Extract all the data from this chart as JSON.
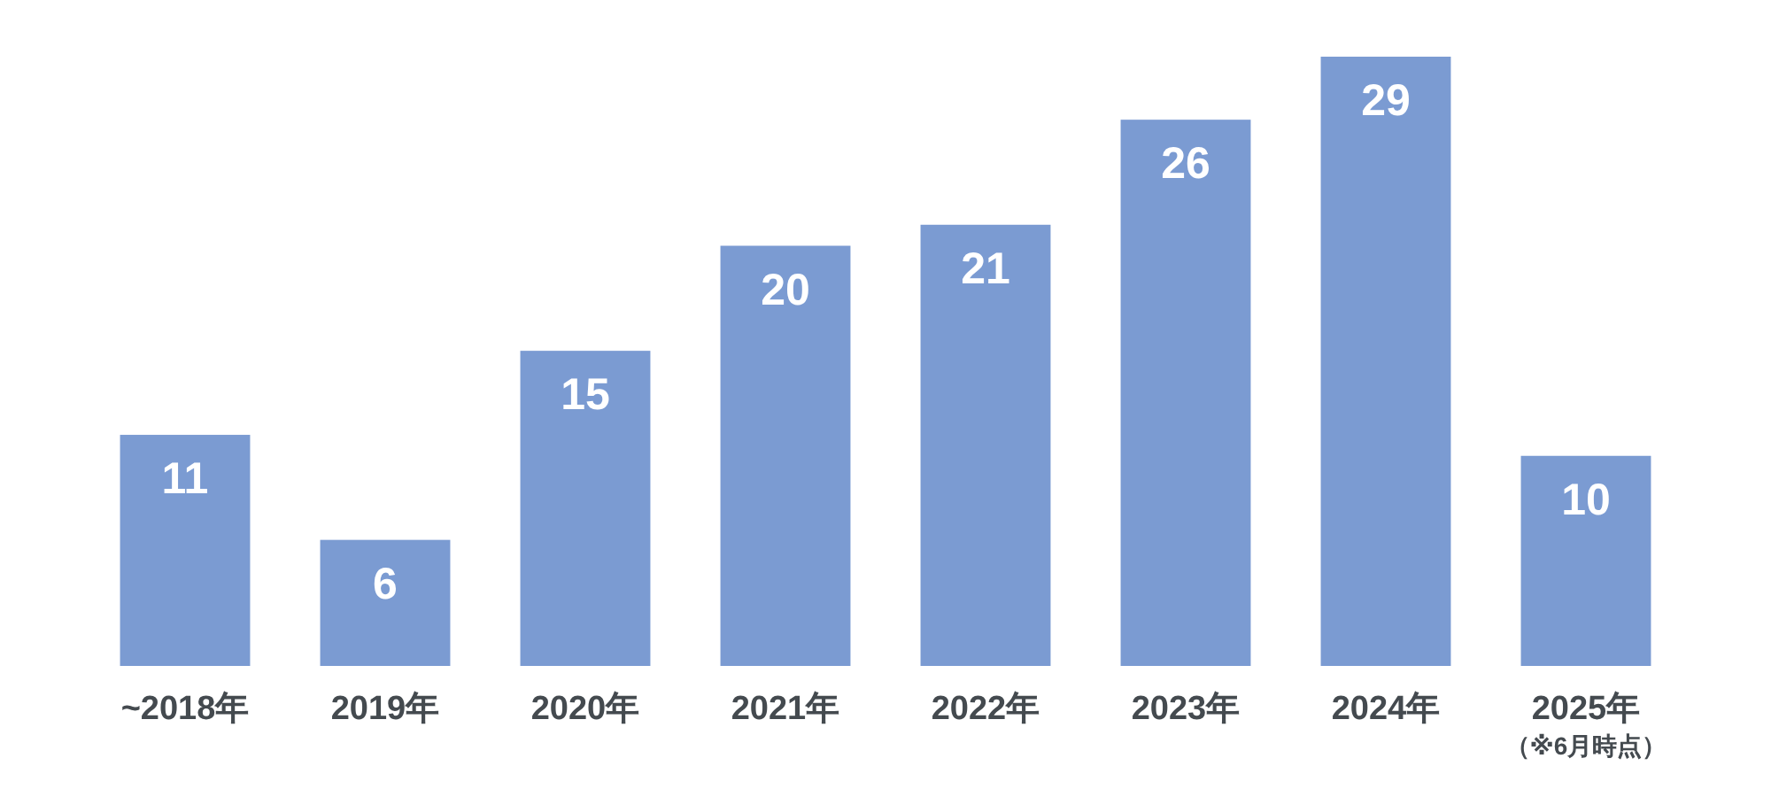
{
  "chart_data": {
    "type": "bar",
    "categories": [
      "~2018年",
      "2019年",
      "2020年",
      "2021年",
      "2022年",
      "2023年",
      "2024年",
      "2025年"
    ],
    "values": [
      11,
      6,
      15,
      20,
      21,
      26,
      29,
      10
    ],
    "color": "#7b9bd2",
    "data_labels": true,
    "annotations": [
      "（※6月時点）"
    ]
  }
}
